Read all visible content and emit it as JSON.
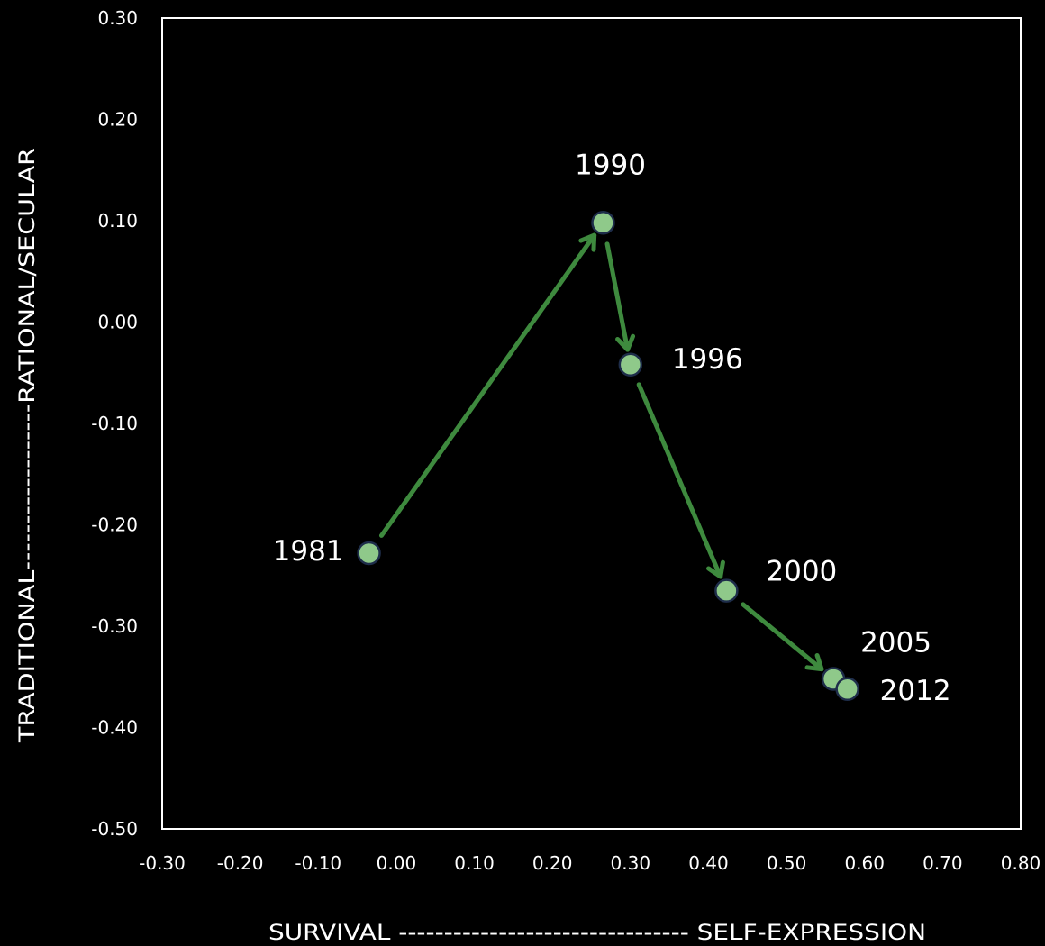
{
  "colors": {
    "background": "#000000",
    "plot_border": "#ffffff",
    "point_fill": "#8fc98a",
    "point_stroke": "#1e2d4a",
    "arrow": "#3e8a3e",
    "text": "#ffffff"
  },
  "chart_data": {
    "type": "scatter",
    "title": "",
    "xlabel": "SURVIVAL -------------------------------- SELF-EXPRESSION",
    "ylabel": "TRADITIONAL------------------RATIONAL/SECULAR",
    "xlim": [
      -0.3,
      0.8
    ],
    "ylim": [
      -0.5,
      0.3
    ],
    "grid": false,
    "x_ticks": [
      "-0.30",
      "-0.20",
      "-0.10",
      "0.00",
      "0.10",
      "0.20",
      "0.30",
      "0.40",
      "0.50",
      "0.60",
      "0.70",
      "0.80"
    ],
    "y_ticks": [
      "0.30",
      "0.20",
      "0.10",
      "0.00",
      "-0.10",
      "-0.20",
      "-0.30",
      "-0.40",
      "-0.50"
    ],
    "points": [
      {
        "label": "1981",
        "x": -0.035,
        "y": -0.228
      },
      {
        "label": "1990",
        "x": 0.265,
        "y": 0.098
      },
      {
        "label": "1996",
        "x": 0.3,
        "y": -0.042
      },
      {
        "label": "2000",
        "x": 0.423,
        "y": -0.265
      },
      {
        "label": "2005",
        "x": 0.56,
        "y": -0.352
      },
      {
        "label": "2012",
        "x": 0.578,
        "y": -0.362
      }
    ],
    "arrows": [
      {
        "from": "1981",
        "to": "1990"
      },
      {
        "from": "1990",
        "to": "1996"
      },
      {
        "from": "1996",
        "to": "2000"
      },
      {
        "from": "2000",
        "to": "2005"
      }
    ]
  }
}
